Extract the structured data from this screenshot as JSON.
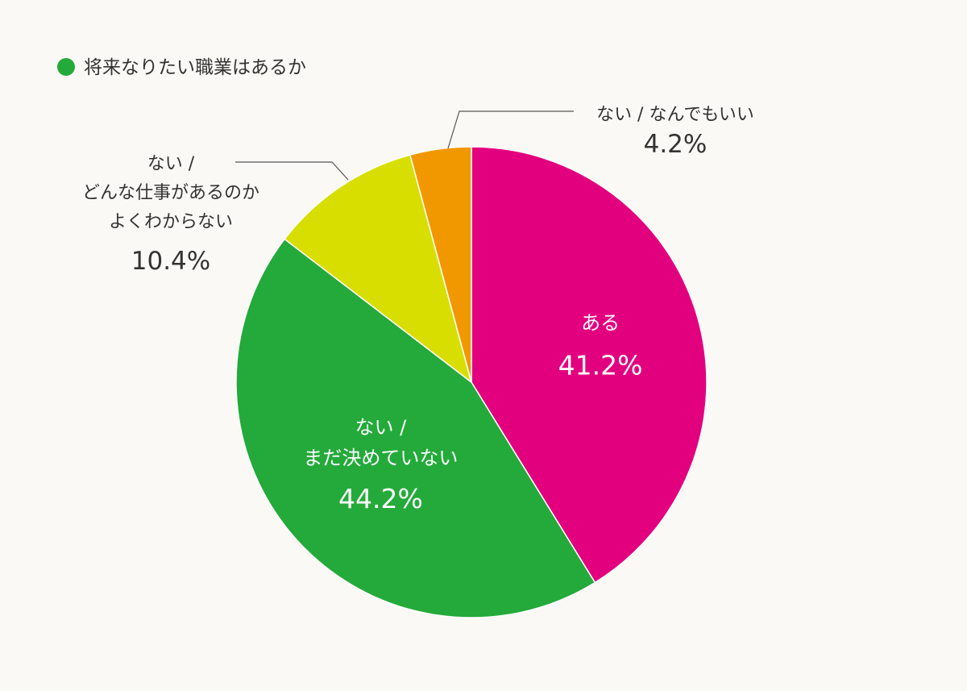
{
  "chart_data": {
    "type": "pie",
    "title": "将来なりたい職業はあるか",
    "legend": {
      "marker_color": "#24aa3a",
      "placement": "top-left"
    },
    "slices": [
      {
        "label_lines": [
          "ある"
        ],
        "value": 41.2,
        "value_label": "41.2%",
        "color": "#e3007f"
      },
      {
        "label_lines": [
          "ない /",
          "まだ決めていない"
        ],
        "value": 44.2,
        "value_label": "44.2%",
        "color": "#24aa3a"
      },
      {
        "label_lines": [
          "ない /",
          "どんな仕事があるのか",
          "よくわからない"
        ],
        "value": 10.4,
        "value_label": "10.4%",
        "color": "#d8df00"
      },
      {
        "label_lines": [
          "ない / なんでもいい"
        ],
        "value": 4.2,
        "value_label": "4.2%",
        "color": "#f19800"
      }
    ]
  }
}
